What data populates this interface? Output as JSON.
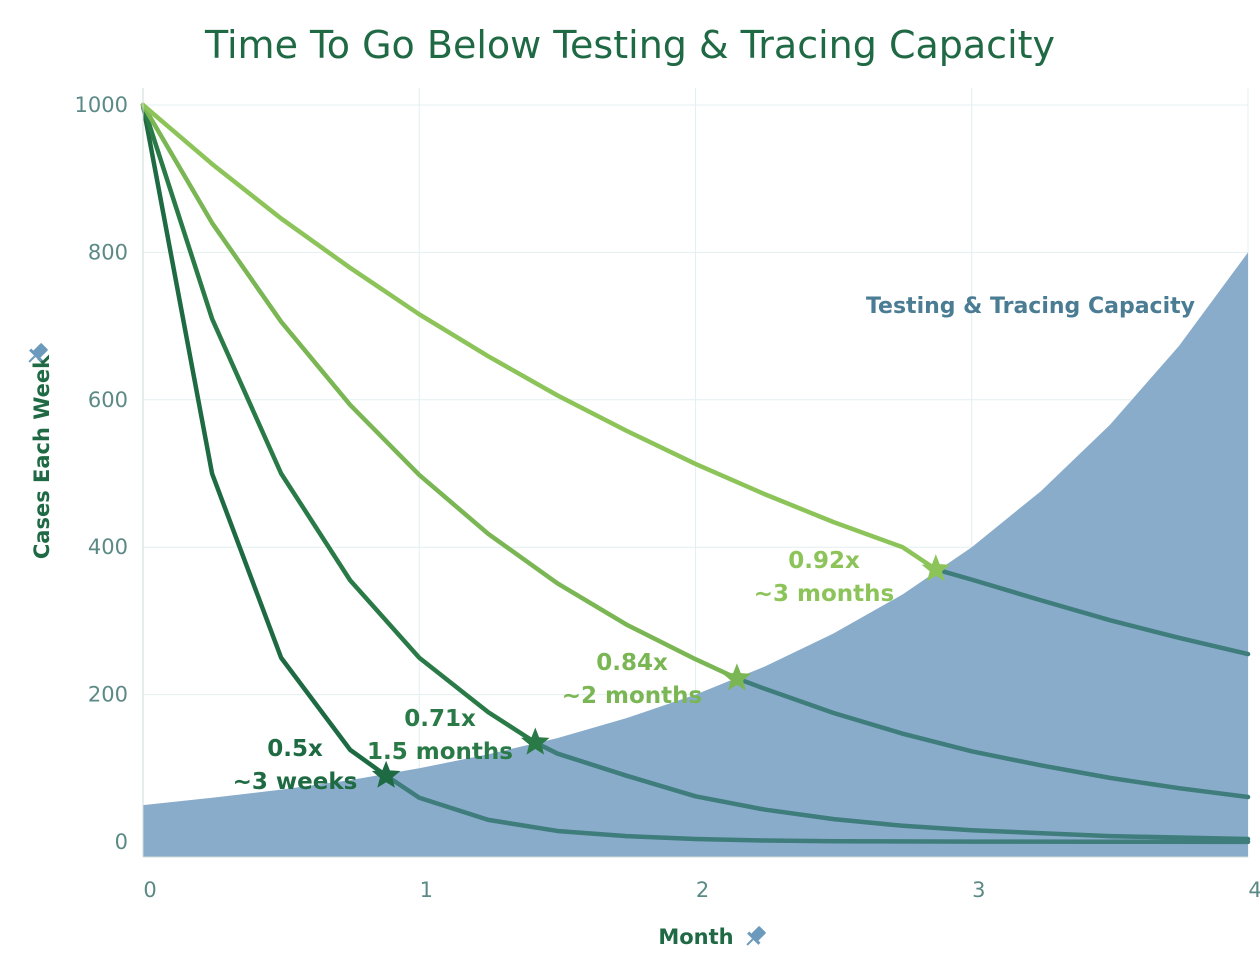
{
  "colors": {
    "title": "#1f6a45",
    "tick": "#5b8a86",
    "grid": "#e4efef",
    "capacity_fill": "#8aaccb",
    "capacity_label": "#4a7c93",
    "overlap_line": "#3e7d7b",
    "pin": "#6b9abd"
  },
  "icons": {
    "ylabel_icon": "pin-icon",
    "xlabel_icon": "pin-icon"
  },
  "chart_data": {
    "type": "line",
    "title": "Time To Go Below Testing & Tracing Capacity",
    "xlabel": "Month",
    "ylabel": "Cases Each Week",
    "xlim": [
      0,
      4
    ],
    "ylim": [
      0,
      1000
    ],
    "x_ticks": [
      "0",
      "1",
      "2",
      "3",
      "4"
    ],
    "y_ticks": [
      "0",
      "200",
      "400",
      "600",
      "800",
      "1000"
    ],
    "grid": true,
    "capacity": {
      "label": "Testing & Tracing Capacity",
      "x": [
        0,
        0.25,
        0.5,
        0.75,
        1,
        1.25,
        1.5,
        1.75,
        2,
        2.25,
        2.5,
        2.75,
        3,
        3.25,
        3.5,
        3.75,
        4
      ],
      "y": [
        50,
        60,
        71,
        84,
        100,
        119,
        141,
        168,
        200,
        238,
        283,
        336,
        400,
        476,
        566,
        673,
        800
      ]
    },
    "series": [
      {
        "color": "#1e6a42",
        "x": [
          0,
          0.25,
          0.5,
          0.75,
          0.88,
          1,
          1.25,
          1.5,
          1.75,
          2,
          2.25,
          2.5,
          3,
          3.5,
          4
        ],
        "y": [
          1000,
          500,
          250,
          125,
          90,
          60,
          30,
          15,
          8,
          4,
          2,
          1,
          0.5,
          0.3,
          0.2
        ],
        "crossing": {
          "x": 0.88,
          "y": 90
        },
        "annotation": [
          "0.5x",
          "~3 weeks"
        ]
      },
      {
        "color": "#2a7a47",
        "x": [
          0,
          0.25,
          0.5,
          0.75,
          1,
          1.25,
          1.42,
          1.5,
          1.75,
          2,
          2.25,
          2.5,
          2.75,
          3,
          3.5,
          4
        ],
        "y": [
          1000,
          710,
          500,
          355,
          250,
          176,
          135,
          120,
          90,
          62,
          44,
          31,
          22,
          16,
          8,
          4
        ],
        "crossing": {
          "x": 1.42,
          "y": 135
        },
        "annotation": [
          "0.71x",
          "1.5 months"
        ]
      },
      {
        "color": "#7ab653",
        "x": [
          0,
          0.25,
          0.5,
          0.75,
          1,
          1.25,
          1.5,
          1.75,
          2,
          2.15,
          2.25,
          2.5,
          2.75,
          3,
          3.25,
          3.5,
          3.75,
          4
        ],
        "y": [
          1000,
          840,
          706,
          593,
          498,
          418,
          351,
          295,
          248,
          222,
          208,
          175,
          147,
          123,
          104,
          87,
          73,
          61
        ],
        "crossing": {
          "x": 2.15,
          "y": 222
        },
        "annotation": [
          "0.84x",
          "~2 months"
        ]
      },
      {
        "color": "#8cc45a",
        "x": [
          0,
          0.25,
          0.5,
          0.75,
          1,
          1.25,
          1.5,
          1.75,
          2,
          2.25,
          2.5,
          2.75,
          2.87,
          3,
          3.25,
          3.5,
          3.75,
          4
        ],
        "y": [
          1000,
          920,
          846,
          779,
          716,
          659,
          606,
          558,
          513,
          472,
          434,
          400,
          370,
          356,
          328,
          301,
          277,
          255
        ],
        "crossing": {
          "x": 2.87,
          "y": 370
        },
        "annotation": [
          "0.92x",
          "~3 months"
        ]
      }
    ]
  }
}
